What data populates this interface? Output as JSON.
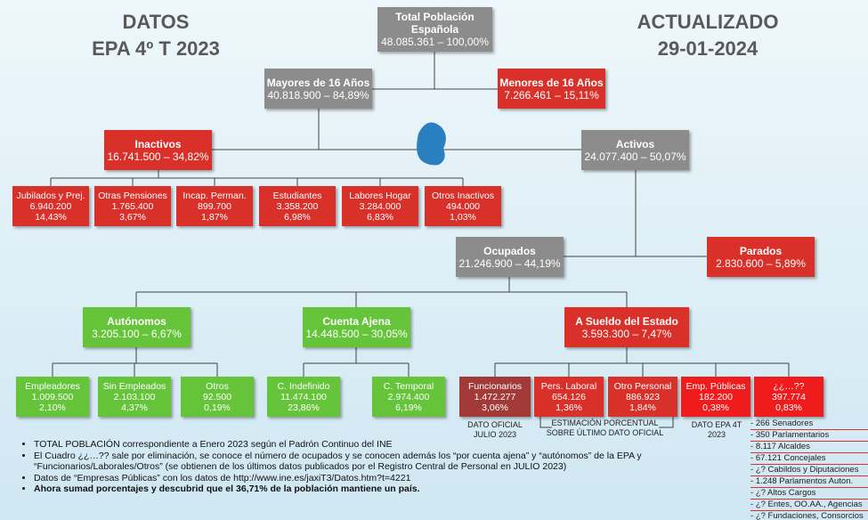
{
  "header": {
    "left_line1": "DATOS",
    "left_line2": "EPA 4º T 2023",
    "right_line1": "ACTUALIZADO",
    "right_line2": "29-01-2024"
  },
  "nodes": [
    {
      "title": "Total Población Española",
      "lines": [
        "48.085.361 – 100,00%"
      ]
    },
    {
      "title": "Mayores de 16 Años",
      "lines": [
        "40.818.900 – 84,89%"
      ]
    },
    {
      "title": "Menores de 16 Años",
      "lines": [
        "7.266.461 – 15,11%"
      ]
    },
    {
      "title": "Inactivos",
      "lines": [
        "16.741.500 – 34,82%"
      ]
    },
    {
      "title": "Activos",
      "lines": [
        "24.077.400 – 50,07%"
      ]
    },
    {
      "title": "Jubilados y Prej.",
      "lines": [
        "6.940.200",
        "14,43%"
      ]
    },
    {
      "title": "Otras Pensiones",
      "lines": [
        "1.765.400",
        "3,67%"
      ]
    },
    {
      "title": "Incap. Perman.",
      "lines": [
        "899.700",
        "1,87%"
      ]
    },
    {
      "title": "Estudiantes",
      "lines": [
        "3.358.200",
        "6,98%"
      ]
    },
    {
      "title": "Labores Hogar",
      "lines": [
        "3.284.000",
        "6,83%"
      ]
    },
    {
      "title": "Otros Inactivos",
      "lines": [
        "494.000",
        "1,03%"
      ]
    },
    {
      "title": "Ocupados",
      "lines": [
        "21.246.900 – 44,19%"
      ]
    },
    {
      "title": "Parados",
      "lines": [
        "2.830.600 – 5,89%"
      ]
    },
    {
      "title": "Autónomos",
      "lines": [
        "3.205.100 – 6,67%"
      ]
    },
    {
      "title": "Cuenta Ajena",
      "lines": [
        "14.448.500 – 30,05%"
      ]
    },
    {
      "title": "A Sueldo del Estado",
      "lines": [
        "3.593.300 – 7,47%"
      ]
    },
    {
      "title": "Empleadores",
      "lines": [
        "1.009.500",
        "2,10%"
      ]
    },
    {
      "title": "Sin Empleados",
      "lines": [
        "2.103.100",
        "4,37%"
      ]
    },
    {
      "title": "Otros",
      "lines": [
        "92.500",
        "0,19%"
      ]
    },
    {
      "title": "C. Indefinido",
      "lines": [
        "11.474.100",
        "23,86%"
      ]
    },
    {
      "title": "C. Temporal",
      "lines": [
        "2.974.400",
        "6,19%"
      ]
    },
    {
      "title": "Funcionarios",
      "lines": [
        "1.472.277",
        "3,06%"
      ]
    },
    {
      "title": "Pers. Laboral",
      "lines": [
        "654.126",
        "1,36%"
      ]
    },
    {
      "title": "Otro Personal",
      "lines": [
        "886.923",
        "1,84%"
      ]
    },
    {
      "title": "Emp. Públicas",
      "lines": [
        "182.200",
        "0,38%"
      ]
    },
    {
      "title": "¿¿…??",
      "lines": [
        "397.774",
        "0,83%"
      ]
    }
  ],
  "annotations": [
    {
      "lines": [
        "DATO OFICIAL",
        "JULIO 2023"
      ]
    },
    {
      "lines": [
        "ESTIMACIÓN PORCENTUAL",
        "SOBRE ÚLTIMO DATO OFICIAL"
      ]
    },
    {
      "lines": [
        "DATO EPA 4T",
        "2023"
      ]
    }
  ],
  "notes": [
    "TOTAL POBLACIÓN correspondiente a Enero 2023 según el Padrón Continuo del INE",
    "El Cuadro ¿¿…?? sale por eliminación, se conoce el número de ocupados y se conocen además los “por cuenta ajena” y “autónomos” de la EPA y “Funcionarios/Laborales/Otros” (se obtienen de los últimos datos publicados por el Registro Central de Personal en JULIO 2023)",
    "Datos de “Empresas Públicas” con los datos de http://www.ine.es/jaxiT3/Datos.htm?t=4221",
    "Ahora sumad porcentajes y descubrid que el 36,71% de la población mantiene un país."
  ],
  "unknown_list": [
    "266 Senadores",
    "350 Parlamentarios",
    "8.117 Alcaldes",
    "67.121 Concejales",
    "¿? Cabildos y Diputaciones",
    "1.248 Parlamentos Auton.",
    "¿? Altos Cargos",
    "¿? Entes, OO.AA., Agencias",
    "¿? Fundaciones, Consorcios"
  ]
}
